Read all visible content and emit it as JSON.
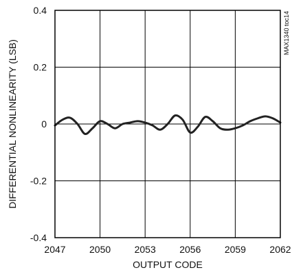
{
  "chart_data": {
    "type": "line",
    "xlabel": "OUTPUT CODE",
    "ylabel": "DIFFERENTIAL NONLINEARITY (LSB)",
    "tag": "MAX1340 toc14",
    "xlim": [
      2047,
      2062
    ],
    "ylim": [
      -0.4,
      0.4
    ],
    "x_ticks": [
      2047,
      2050,
      2053,
      2056,
      2059,
      2062
    ],
    "x_tick_labels": [
      "2047",
      "2050",
      "2053",
      "2056",
      "2059",
      "2062"
    ],
    "y_ticks": [
      0.4,
      0.2,
      0,
      -0.2,
      -0.4
    ],
    "y_tick_labels": [
      "0.4",
      "0.2",
      "0",
      "-0.2",
      "-0.4"
    ],
    "grid": true,
    "colors": {
      "line": "#222222",
      "axes": "#000000",
      "grid": "#000000"
    },
    "series": [
      {
        "x": [
          2047.0,
          2047.5,
          2048.0,
          2048.5,
          2049.0,
          2049.5,
          2050.0,
          2050.5,
          2051.0,
          2051.5,
          2052.0,
          2052.5,
          2053.0,
          2053.5,
          2054.0,
          2054.5,
          2055.0,
          2055.5,
          2056.0,
          2056.5,
          2057.0,
          2057.5,
          2058.0,
          2058.5,
          2059.0,
          2059.5,
          2060.0,
          2060.5,
          2061.0,
          2061.5,
          2062.0
        ],
        "y": [
          -0.005,
          0.015,
          0.022,
          0.0,
          -0.035,
          -0.015,
          0.01,
          0.0,
          -0.015,
          0.0,
          0.005,
          0.01,
          0.005,
          -0.005,
          -0.02,
          0.0,
          0.03,
          0.015,
          -0.03,
          -0.01,
          0.025,
          0.01,
          -0.015,
          -0.02,
          -0.015,
          -0.005,
          0.01,
          0.02,
          0.027,
          0.02,
          0.005
        ]
      }
    ]
  }
}
